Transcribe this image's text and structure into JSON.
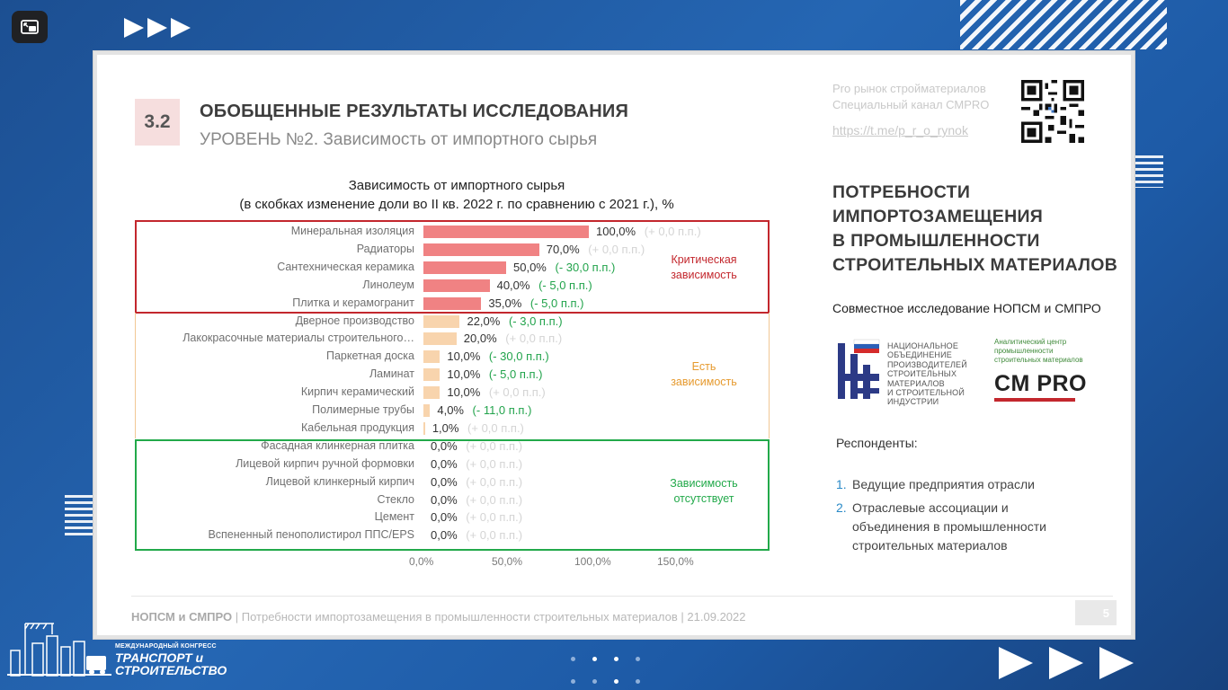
{
  "slide": {
    "section_number": "3.2",
    "title": "ОБОБЩЕННЫЕ РЕЗУЛЬТАТЫ ИССЛЕДОВАНИЯ",
    "subtitle": "УРОВЕНЬ №2. Зависимость от импортного сырья",
    "channel": {
      "line1": "Pro рынок стройматериалов",
      "line2": "Специальный канал СМPRO",
      "link": "https://t.me/p_r_o_rynok"
    },
    "right": {
      "title_lines": [
        "ПОТРЕБНОСТИ",
        "ИМПОРТОЗАМЕЩЕНИЯ",
        "В ПРОМЫШЛЕННОСТИ",
        "СТРОИТЕЛЬНЫХ МАТЕРИАЛОВ"
      ],
      "joint_study": "Совместное исследование НОПСМ и СМПРО",
      "nopsm_lines": [
        "НАЦИОНАЛЬНОЕ",
        "ОБЪЕДИНЕНИЕ",
        "ПРОИЗВОДИТЕЛЕЙ",
        "СТРОИТЕЛЬНЫХ",
        "МАТЕРИАЛОВ",
        "И СТРОИТЕЛЬНОЙ",
        "ИНДУСТРИИ"
      ],
      "cmpro_small_lines": [
        "Аналитический центр",
        "промышленности",
        "строительных материалов"
      ],
      "cmpro_logo": "CM PRO",
      "respondents_title": "Респонденты:",
      "respondents": [
        {
          "num": "1.",
          "lines": [
            "Ведущие предприятия отрасли"
          ]
        },
        {
          "num": "2.",
          "lines": [
            "Отраслевые ассоциации и",
            "объединения в промышленности",
            "строительных материалов"
          ]
        }
      ]
    },
    "footer": {
      "org": "НОПСМ и СМПРО",
      "sep1": "|",
      "text": "Потребности импортозамещения в промышленности строительных материалов",
      "sep2": "|",
      "date": "21.09.2022",
      "page": "5"
    }
  },
  "chart_data": {
    "type": "bar",
    "orientation": "horizontal",
    "title": "Зависимость от импортного сырья",
    "subtitle": "(в скобках изменение доли во II кв. 2022 г. по сравнению с 2021 г.), %",
    "xlim": [
      0,
      150
    ],
    "x_ticks": [
      "0,0%",
      "50,0%",
      "100,0%",
      "150,0%"
    ],
    "categories": [
      "Минеральная изоляция",
      "Радиаторы",
      "Сантехническая керамика",
      "Линолеум",
      "Плитка и керамогранит",
      "Дверное производство",
      "Лакокрасочные материалы строительного…",
      "Паркетная доска",
      "Ламинат",
      "Кирпич керамический",
      "Полимерные трубы",
      "Кабельная продукция",
      "Фасадная клинкерная плитка",
      "Лицевой кирпич ручной формовки",
      "Лицевой клинкерный кирпич",
      "Стекло",
      "Цемент",
      "Вспененный пенополистирол ППС/EPS"
    ],
    "values": [
      100,
      70,
      50,
      40,
      35,
      22,
      20,
      10,
      10,
      10,
      4,
      1,
      0,
      0,
      0,
      0,
      0,
      0
    ],
    "value_labels": [
      "100,0%",
      "70,0%",
      "50,0%",
      "40,0%",
      "35,0%",
      "22,0%",
      "20,0%",
      "10,0%",
      "10,0%",
      "10,0%",
      "4,0%",
      "1,0%",
      "0,0%",
      "0,0%",
      "0,0%",
      "0,0%",
      "0,0%",
      "0,0%"
    ],
    "changes": [
      "(+ 0,0 п.п.)",
      "(+ 0,0 п.п.)",
      "(- 30,0 п.п.)",
      "(- 5,0 п.п.)",
      "(- 5,0 п.п.)",
      "(- 3,0 п.п.)",
      "(+ 0,0 п.п.)",
      "(- 30,0 п.п.)",
      "(- 5,0 п.п.)",
      "(+ 0,0 п.п.)",
      "(- 11,0 п.п.)",
      "(+ 0,0 п.п.)",
      "(+ 0,0 п.п.)",
      "(+ 0,0 п.п.)",
      "(+ 0,0 п.п.)",
      "(+ 0,0 п.п.)",
      "(+ 0,0 п.п.)",
      "(+ 0,0 п.п.)"
    ],
    "change_values": [
      0,
      0,
      -30,
      -5,
      -5,
      -3,
      0,
      -30,
      -5,
      0,
      -11,
      0,
      0,
      0,
      0,
      0,
      0,
      0
    ],
    "groups": [
      {
        "name": "Критическая зависимость",
        "lines": [
          "Критическая",
          "зависимость"
        ],
        "color": "#c3272d",
        "bar_color": "#f08283",
        "from": 0,
        "to": 4
      },
      {
        "name": "Есть зависимость",
        "lines": [
          "Есть",
          "зависимость"
        ],
        "color": "#e69a2e",
        "bar_color": "#f8d4ad",
        "from": 5,
        "to": 11
      },
      {
        "name": "Зависимость отсутствует",
        "lines": [
          "Зависимость",
          "отсутствует"
        ],
        "color": "#22a94a",
        "bar_color": "#cccccc",
        "from": 12,
        "to": 17
      }
    ],
    "change_colors": {
      "negative": "#21a34b",
      "zero": "#d4d4d4"
    }
  },
  "congress": {
    "small": "МЕЖДУНАРОДНЫЙ КОНГРЕСС",
    "line1": "ТРАНСПОРТ и",
    "line2": "СТРОИТЕЛЬСТВО"
  }
}
